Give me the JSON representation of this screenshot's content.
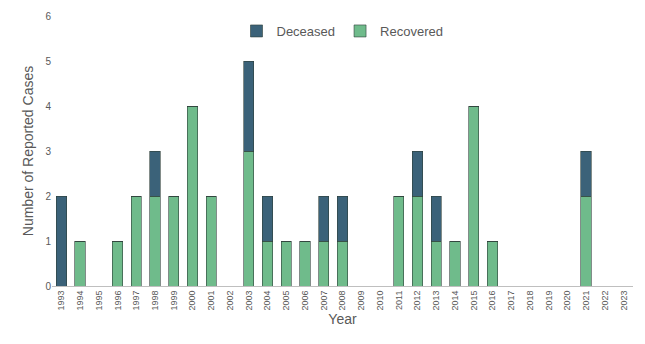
{
  "chart_data": {
    "type": "bar",
    "x_label": "Year",
    "y_label": "Number of Reported Cases",
    "categories": [
      "1993",
      "1994",
      "1995",
      "1996",
      "1997",
      "1998",
      "1999",
      "2000",
      "2001",
      "2002",
      "2003",
      "2004",
      "2005",
      "2006",
      "2007",
      "2008",
      "2009",
      "2010",
      "2011",
      "2012",
      "2013",
      "2014",
      "2015",
      "2016",
      "2017",
      "2018",
      "2019",
      "2020",
      "2021",
      "2022",
      "2023"
    ],
    "series": [
      {
        "name": "Recovered",
        "color": "#6fbb8b",
        "values": [
          0,
          1,
          0,
          1,
          2,
          2,
          2,
          4,
          2,
          0,
          3,
          1,
          1,
          1,
          1,
          1,
          0,
          0,
          2,
          2,
          1,
          1,
          4,
          1,
          0,
          0,
          0,
          0,
          2,
          0,
          0
        ]
      },
      {
        "name": "Deceased",
        "color": "#3b6279",
        "values": [
          2,
          0,
          0,
          0,
          0,
          1,
          0,
          0,
          0,
          0,
          2,
          1,
          0,
          0,
          1,
          1,
          0,
          0,
          0,
          1,
          1,
          0,
          0,
          0,
          0,
          0,
          0,
          0,
          1,
          0,
          0
        ]
      }
    ],
    "stacked": true,
    "ylim": [
      0,
      6
    ],
    "yticks": [
      0,
      1,
      2,
      3,
      4,
      5,
      6
    ],
    "grid": false,
    "legend": "top"
  }
}
